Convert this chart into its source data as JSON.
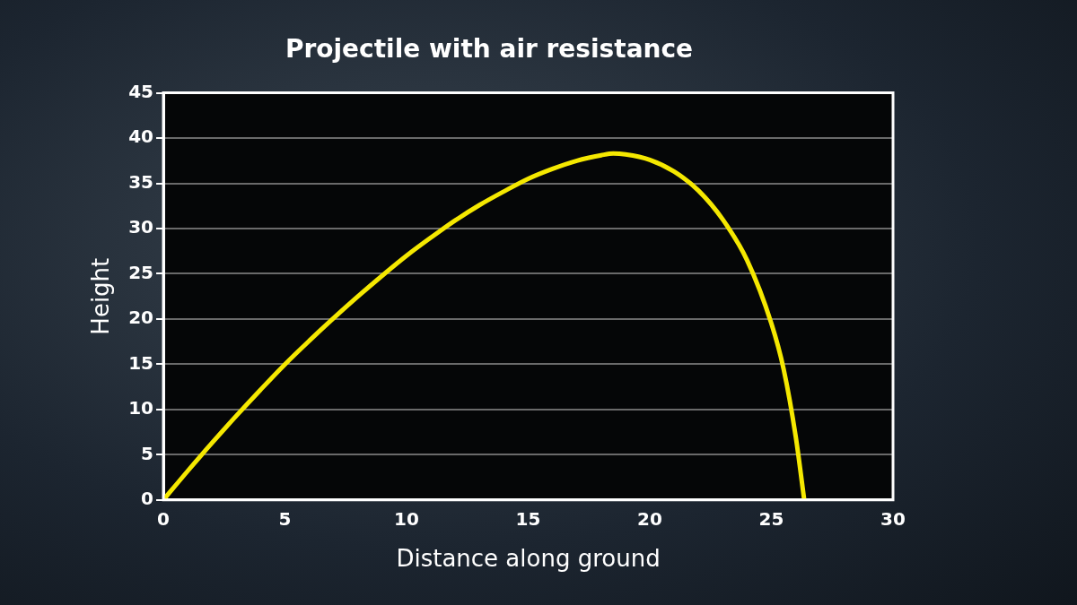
{
  "chart_data": {
    "type": "line",
    "title": "Projectile with air resistance",
    "xlabel": "Distance along ground",
    "ylabel": "Height",
    "xlim": [
      0,
      30
    ],
    "xticks": [
      0,
      5,
      10,
      15,
      20,
      25,
      30
    ],
    "ylim": [
      0,
      45
    ],
    "yticks": [
      0,
      5,
      10,
      15,
      20,
      25,
      30,
      35,
      40,
      45
    ],
    "grid": "y",
    "legend": false,
    "marker": "none",
    "line_style": "solid",
    "series": [
      {
        "color": "#f5e800",
        "x": [
          0,
          1,
          2,
          3,
          4,
          5,
          6,
          7,
          8,
          9,
          10,
          11,
          12,
          13,
          14,
          15,
          16,
          17,
          18,
          18.5,
          19,
          20,
          21,
          22,
          23,
          24,
          25,
          25.5,
          26,
          26.35
        ],
        "values": [
          0,
          3.2,
          6.3,
          9.3,
          12.2,
          15,
          17.6,
          20.1,
          22.5,
          24.8,
          27,
          29,
          30.9,
          32.6,
          34.1,
          35.5,
          36.6,
          37.5,
          38.1,
          38.3,
          38.2,
          37.6,
          36.3,
          34.2,
          31,
          26.5,
          19.5,
          14.5,
          7,
          0
        ]
      }
    ]
  }
}
